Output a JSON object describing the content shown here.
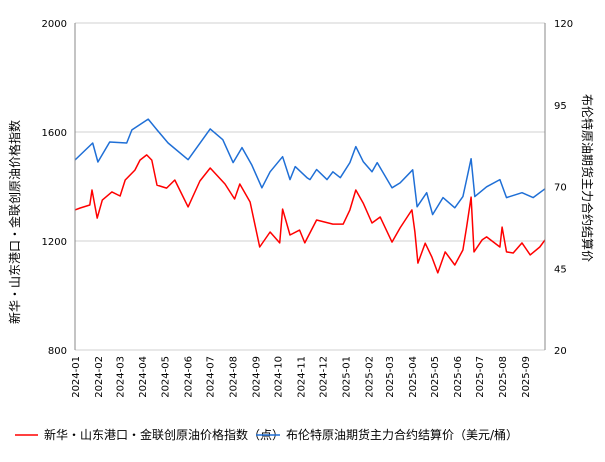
{
  "chart_data": {
    "type": "line",
    "title": "",
    "grid": true,
    "legend_placement": "bottom",
    "x_ticks": [
      "2024-01",
      "2024-02",
      "2024-03",
      "2024-04",
      "2024-05",
      "2024-06",
      "2024-07",
      "2024-08",
      "2024-09",
      "2024-10",
      "2024-11",
      "2024-12",
      "2025-01",
      "2025-02",
      "2025-03",
      "2025-04",
      "2025-05",
      "2025-06",
      "2025-07",
      "2025-08",
      "2025-09"
    ],
    "y_left": {
      "label": "新华・山东港口・金联创原油价格指数",
      "range": [
        800,
        2000
      ],
      "ticks": [
        "800",
        "1200",
        "1600",
        "2000"
      ]
    },
    "y_right": {
      "label": "布伦特原油期货主力合约结算价",
      "range": [
        20,
        120
      ],
      "ticks": [
        "20",
        "45",
        "70",
        "95",
        "120"
      ]
    },
    "series": [
      {
        "name": "新华・山东港口・金联创原油价格指数（点）",
        "axis": "left",
        "color": "#ff0000",
        "x": [
          "2024-01-01",
          "2024-01-08",
          "2024-01-21",
          "2024-01-24",
          "2024-01-31",
          "2024-02-07",
          "2024-02-20",
          "2024-03-02",
          "2024-03-09",
          "2024-03-22",
          "2024-03-29",
          "2024-04-07",
          "2024-04-14",
          "2024-04-21",
          "2024-05-04",
          "2024-05-15",
          "2024-06-02",
          "2024-06-18",
          "2024-07-02",
          "2024-07-22",
          "2024-08-04",
          "2024-08-11",
          "2024-08-25",
          "2024-09-07",
          "2024-09-21",
          "2024-10-04",
          "2024-10-08",
          "2024-10-18",
          "2024-10-31",
          "2024-11-07",
          "2024-11-23",
          "2024-12-15",
          "2024-12-29",
          "2025-01-07",
          "2025-01-15",
          "2025-01-25",
          "2025-02-06",
          "2025-02-17",
          "2025-03-05",
          "2025-03-16",
          "2025-04-01",
          "2025-04-05",
          "2025-04-09",
          "2025-04-19",
          "2025-04-28",
          "2025-05-06",
          "2025-05-16",
          "2025-05-29",
          "2025-06-09",
          "2025-06-14",
          "2025-06-20",
          "2025-06-24",
          "2025-07-05",
          "2025-07-11",
          "2025-07-29",
          "2025-08-01",
          "2025-08-07",
          "2025-08-16",
          "2025-08-28",
          "2025-09-08",
          "2025-09-21",
          "2025-09-28"
        ],
        "values": [
          1314,
          1321,
          1332,
          1387,
          1284,
          1350,
          1380,
          1365,
          1424,
          1460,
          1497,
          1516,
          1497,
          1405,
          1394,
          1424,
          1325,
          1420,
          1468,
          1409,
          1354,
          1409,
          1343,
          1178,
          1233,
          1193,
          1317,
          1222,
          1240,
          1193,
          1277,
          1262,
          1262,
          1314,
          1387,
          1339,
          1266,
          1288,
          1196,
          1248,
          1314,
          1233,
          1119,
          1192,
          1141,
          1083,
          1160,
          1112,
          1167,
          1251,
          1361,
          1160,
          1204,
          1215,
          1178,
          1251,
          1160,
          1156,
          1193,
          1149,
          1178,
          1204
        ]
      },
      {
        "name": "布伦特原油期货主力合约结算价（美元/桶）",
        "axis": "right",
        "color": "#1f6fd6",
        "x": [
          "2024-01-01",
          "2024-01-25",
          "2024-02-01",
          "2024-02-17",
          "2024-03-11",
          "2024-03-18",
          "2024-04-09",
          "2024-04-21",
          "2024-05-06",
          "2024-06-02",
          "2024-07-02",
          "2024-07-19",
          "2024-08-02",
          "2024-08-14",
          "2024-08-27",
          "2024-09-10",
          "2024-09-21",
          "2024-10-08",
          "2024-10-18",
          "2024-10-25",
          "2024-11-10",
          "2024-11-14",
          "2024-11-23",
          "2024-12-07",
          "2024-12-15",
          "2024-12-25",
          "2025-01-07",
          "2025-01-15",
          "2025-01-25",
          "2025-02-06",
          "2025-02-13",
          "2025-03-05",
          "2025-03-16",
          "2025-04-02",
          "2025-04-08",
          "2025-04-21",
          "2025-04-29",
          "2025-05-13",
          "2025-05-29",
          "2025-06-09",
          "2025-06-14",
          "2025-06-20",
          "2025-06-25",
          "2025-07-11",
          "2025-07-29",
          "2025-08-07",
          "2025-08-28",
          "2025-09-12",
          "2025-09-28"
        ],
        "values": [
          78.1,
          83.3,
          77.5,
          83.6,
          83.3,
          87.3,
          90.6,
          87.3,
          83.3,
          78.2,
          87.6,
          84.3,
          77.3,
          81.9,
          76.7,
          69.6,
          74.5,
          79.1,
          72.1,
          76.1,
          72.7,
          72.1,
          75.2,
          72.1,
          74.5,
          72.7,
          77.3,
          82.2,
          77.6,
          74.5,
          77.3,
          69.6,
          71.1,
          75.1,
          63.8,
          68.1,
          61.4,
          66.6,
          63.5,
          66.9,
          72.1,
          78.5,
          66.9,
          69.9,
          72.1,
          66.6,
          68.1,
          66.6,
          69.3
        ]
      }
    ]
  }
}
